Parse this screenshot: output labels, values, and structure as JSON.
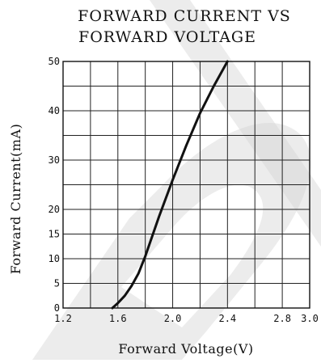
{
  "chart_data": {
    "type": "line",
    "title_lines": [
      "FORWARD CURRENT VS",
      "FORWARD VOLTAGE"
    ],
    "xlabel": "Forward Voltage(V)",
    "ylabel": "Forward Current(mA)",
    "xlim": [
      1.2,
      3.0
    ],
    "ylim": [
      0,
      50
    ],
    "x_ticks": [
      1.2,
      1.4,
      1.6,
      1.8,
      2.0,
      2.2,
      2.4,
      2.6,
      2.8,
      3.0
    ],
    "x_tick_labels": [
      "1.2",
      "",
      "1.6",
      "",
      "2.0",
      "",
      "2.4",
      "",
      "2.8",
      "3.0"
    ],
    "y_ticks": [
      0,
      5,
      10,
      15,
      20,
      25,
      30,
      35,
      40,
      45,
      50
    ],
    "y_tick_labels": [
      "0",
      "5",
      "10",
      "15",
      "20",
      "",
      "30",
      "",
      "40",
      "",
      "50"
    ],
    "grid": true,
    "series": [
      {
        "color": "#111111",
        "points": [
          {
            "x": 1.56,
            "y": 0
          },
          {
            "x": 1.6,
            "y": 1
          },
          {
            "x": 1.65,
            "y": 2.5
          },
          {
            "x": 1.7,
            "y": 4.5
          },
          {
            "x": 1.75,
            "y": 7
          },
          {
            "x": 1.8,
            "y": 10.5
          },
          {
            "x": 1.85,
            "y": 14.5
          },
          {
            "x": 1.9,
            "y": 18.5
          },
          {
            "x": 2.0,
            "y": 26
          },
          {
            "x": 2.1,
            "y": 33
          },
          {
            "x": 2.2,
            "y": 39.5
          },
          {
            "x": 2.3,
            "y": 45
          },
          {
            "x": 2.4,
            "y": 50
          }
        ]
      }
    ]
  }
}
